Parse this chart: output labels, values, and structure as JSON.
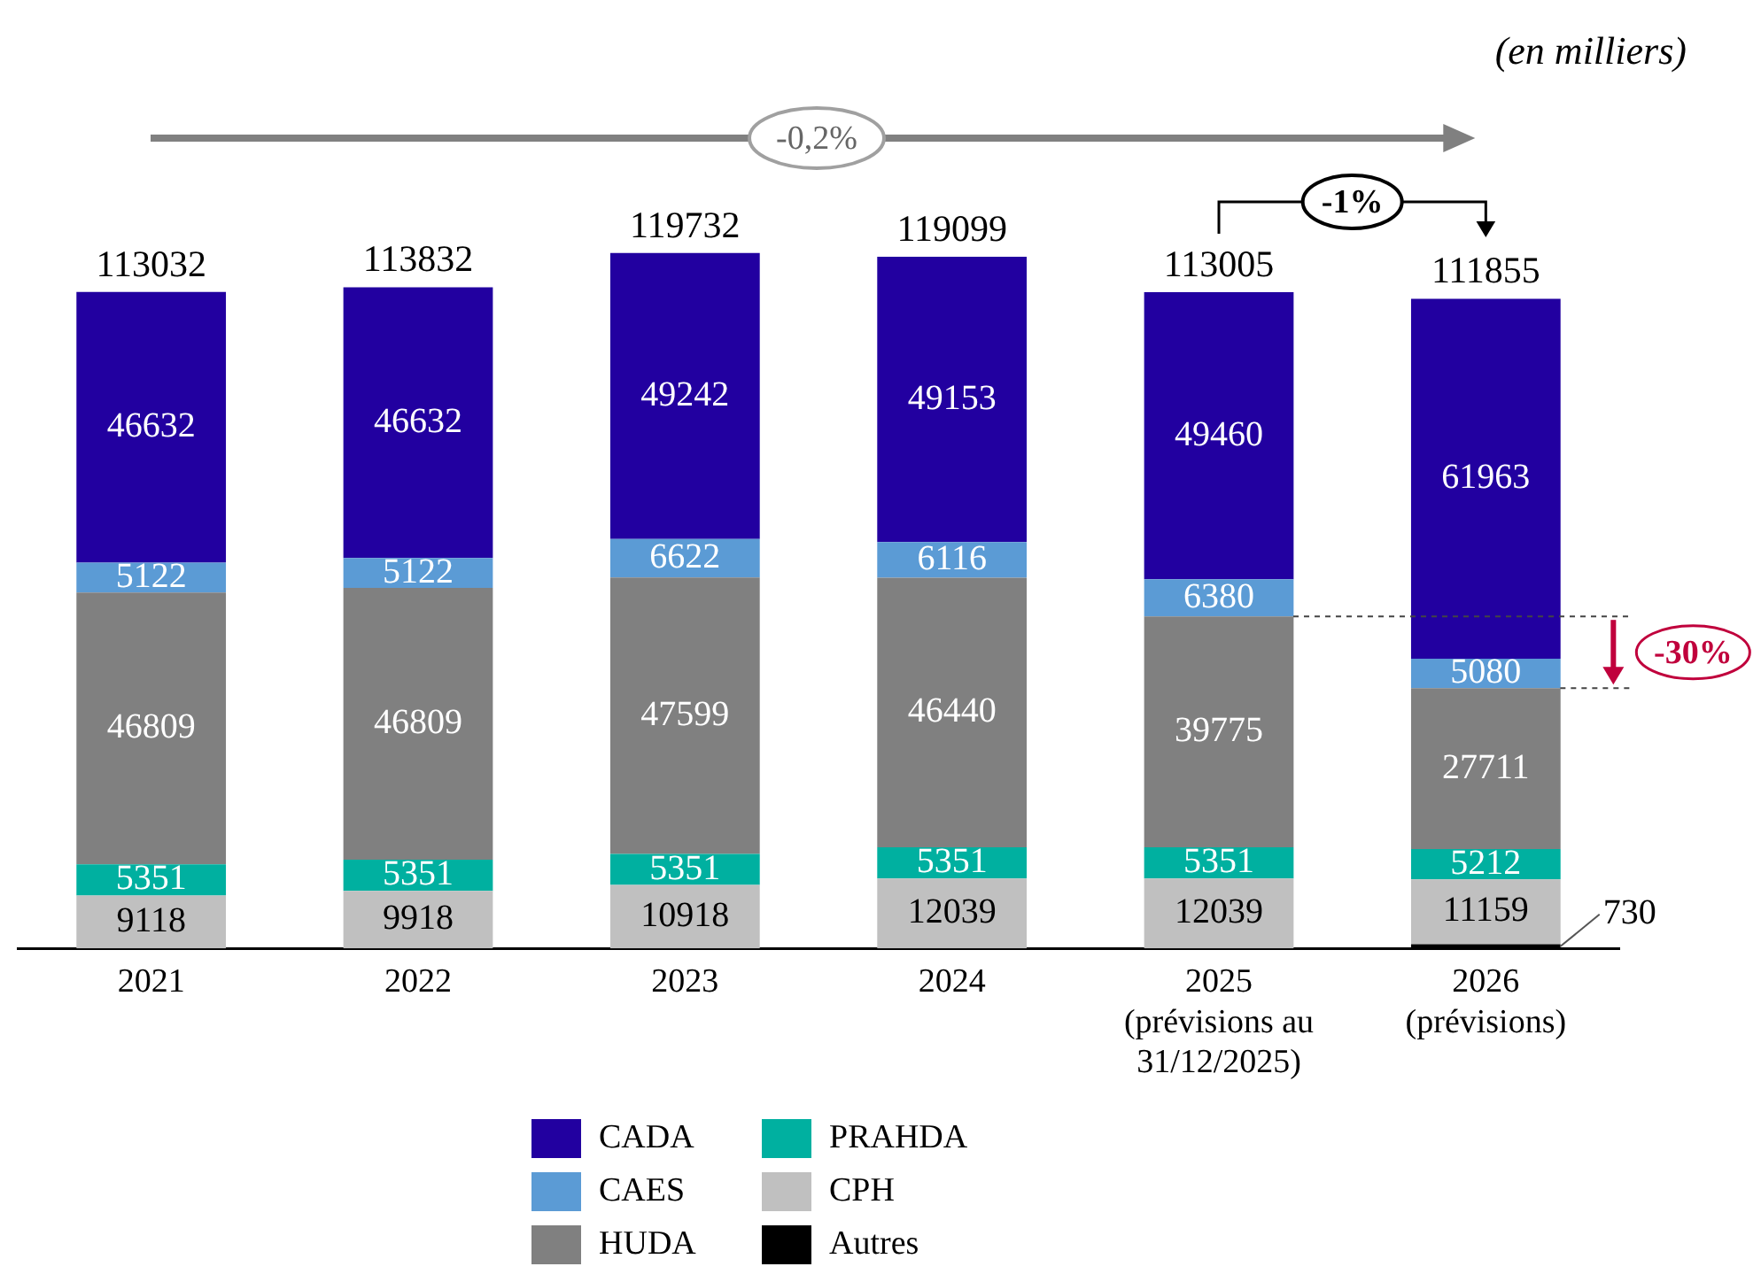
{
  "chart_data": {
    "type": "bar",
    "stacked": true,
    "data_labels": true,
    "legend": "bottom",
    "categories": [
      "2021",
      "2022",
      "2023",
      "2024",
      "2025\n(prévisions au\n31/12/2025)",
      "2026\n(prévisions)"
    ],
    "series": [
      {
        "name": "Autres",
        "color": "#000000",
        "values": [
          null,
          null,
          null,
          null,
          null,
          730
        ]
      },
      {
        "name": "CPH",
        "color": "#c0c0c0",
        "values": [
          9118,
          9918,
          10918,
          12039,
          12039,
          11159
        ]
      },
      {
        "name": "PRAHDA",
        "color": "#00b0a0",
        "values": [
          5351,
          5351,
          5351,
          5351,
          5351,
          5212
        ]
      },
      {
        "name": "HUDA",
        "color": "#808080",
        "values": [
          46809,
          46809,
          47599,
          46440,
          39775,
          27711
        ]
      },
      {
        "name": "CAES",
        "color": "#5b9bd5",
        "values": [
          5122,
          5122,
          6622,
          6116,
          6380,
          5080
        ]
      },
      {
        "name": "CADA",
        "color": "#2200a0",
        "values": [
          46632,
          46632,
          49242,
          49153,
          49460,
          61963
        ]
      }
    ],
    "totals": [
      "113032",
      "113832",
      "119732",
      "119099",
      "113005",
      "111855"
    ],
    "annotations": [
      "(en milliers)",
      "-0,2%",
      "-1%",
      "-30%"
    ]
  }
}
